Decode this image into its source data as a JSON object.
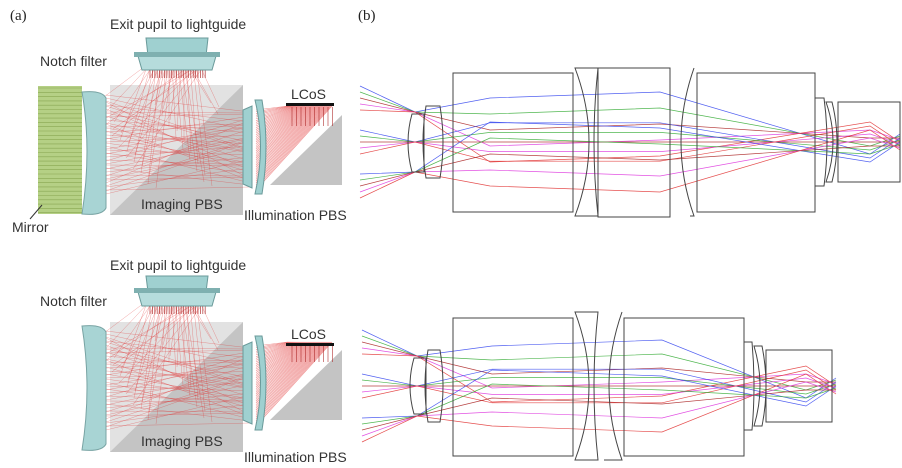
{
  "panel_labels": {
    "a": "(a)",
    "b": "(b)"
  },
  "top": {
    "exit_pupil": "Exit pupil to lightguide",
    "notch_filter": "Notch filter",
    "mirror": "Mirror",
    "imaging_pbs": "Imaging PBS",
    "illumination_pbs": "Illumination PBS",
    "lcos": "LCoS"
  },
  "bottom": {
    "exit_pupil": "Exit pupil to lightguide",
    "notch_filter": "Notch filter",
    "imaging_pbs": "Imaging PBS",
    "illumination_pbs": "Illumination PBS",
    "lcos": "LCoS"
  },
  "colors": {
    "ray_red": "#e03030",
    "ray_blue": "#3344ee",
    "ray_green": "#33aa33",
    "ray_magenta": "#dd33dd",
    "ray_darkred": "#aa2222",
    "lens_fill": "#9fd0d0",
    "prism_fill": "#bdbdbd"
  }
}
